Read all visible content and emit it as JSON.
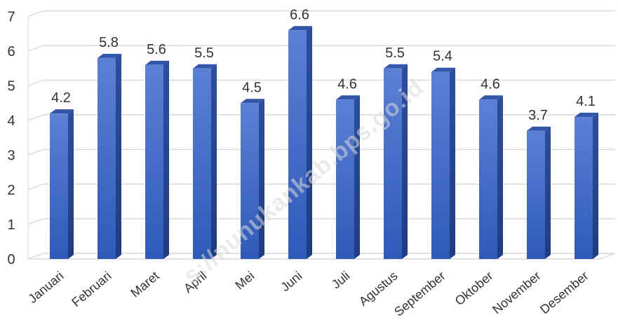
{
  "chart_data": {
    "type": "bar",
    "categories": [
      "Januari",
      "Februari",
      "Maret",
      "April",
      "Mei",
      "Juni",
      "Juli",
      "Agustus",
      "September",
      "Oktober",
      "November",
      "Desember"
    ],
    "values": [
      4.2,
      5.8,
      5.6,
      5.5,
      4.5,
      6.6,
      4.6,
      5.5,
      5.4,
      4.6,
      3.7,
      4.1
    ],
    "data_labels": [
      "4.2",
      "5.8",
      "5.6",
      "5.5",
      "4.5",
      "6.6",
      "4.6",
      "5.5",
      "5.4",
      "4.6",
      "3.7",
      "4.1"
    ],
    "y_ticks": [
      "0",
      "1",
      "2",
      "3",
      "4",
      "5",
      "6",
      "7"
    ],
    "ylim": [
      0,
      7
    ],
    "grid": true,
    "legend": "none",
    "style": "3d-column",
    "bar_color": "#3b63c4",
    "watermark": "s://nunukankab.bps.go.id"
  }
}
